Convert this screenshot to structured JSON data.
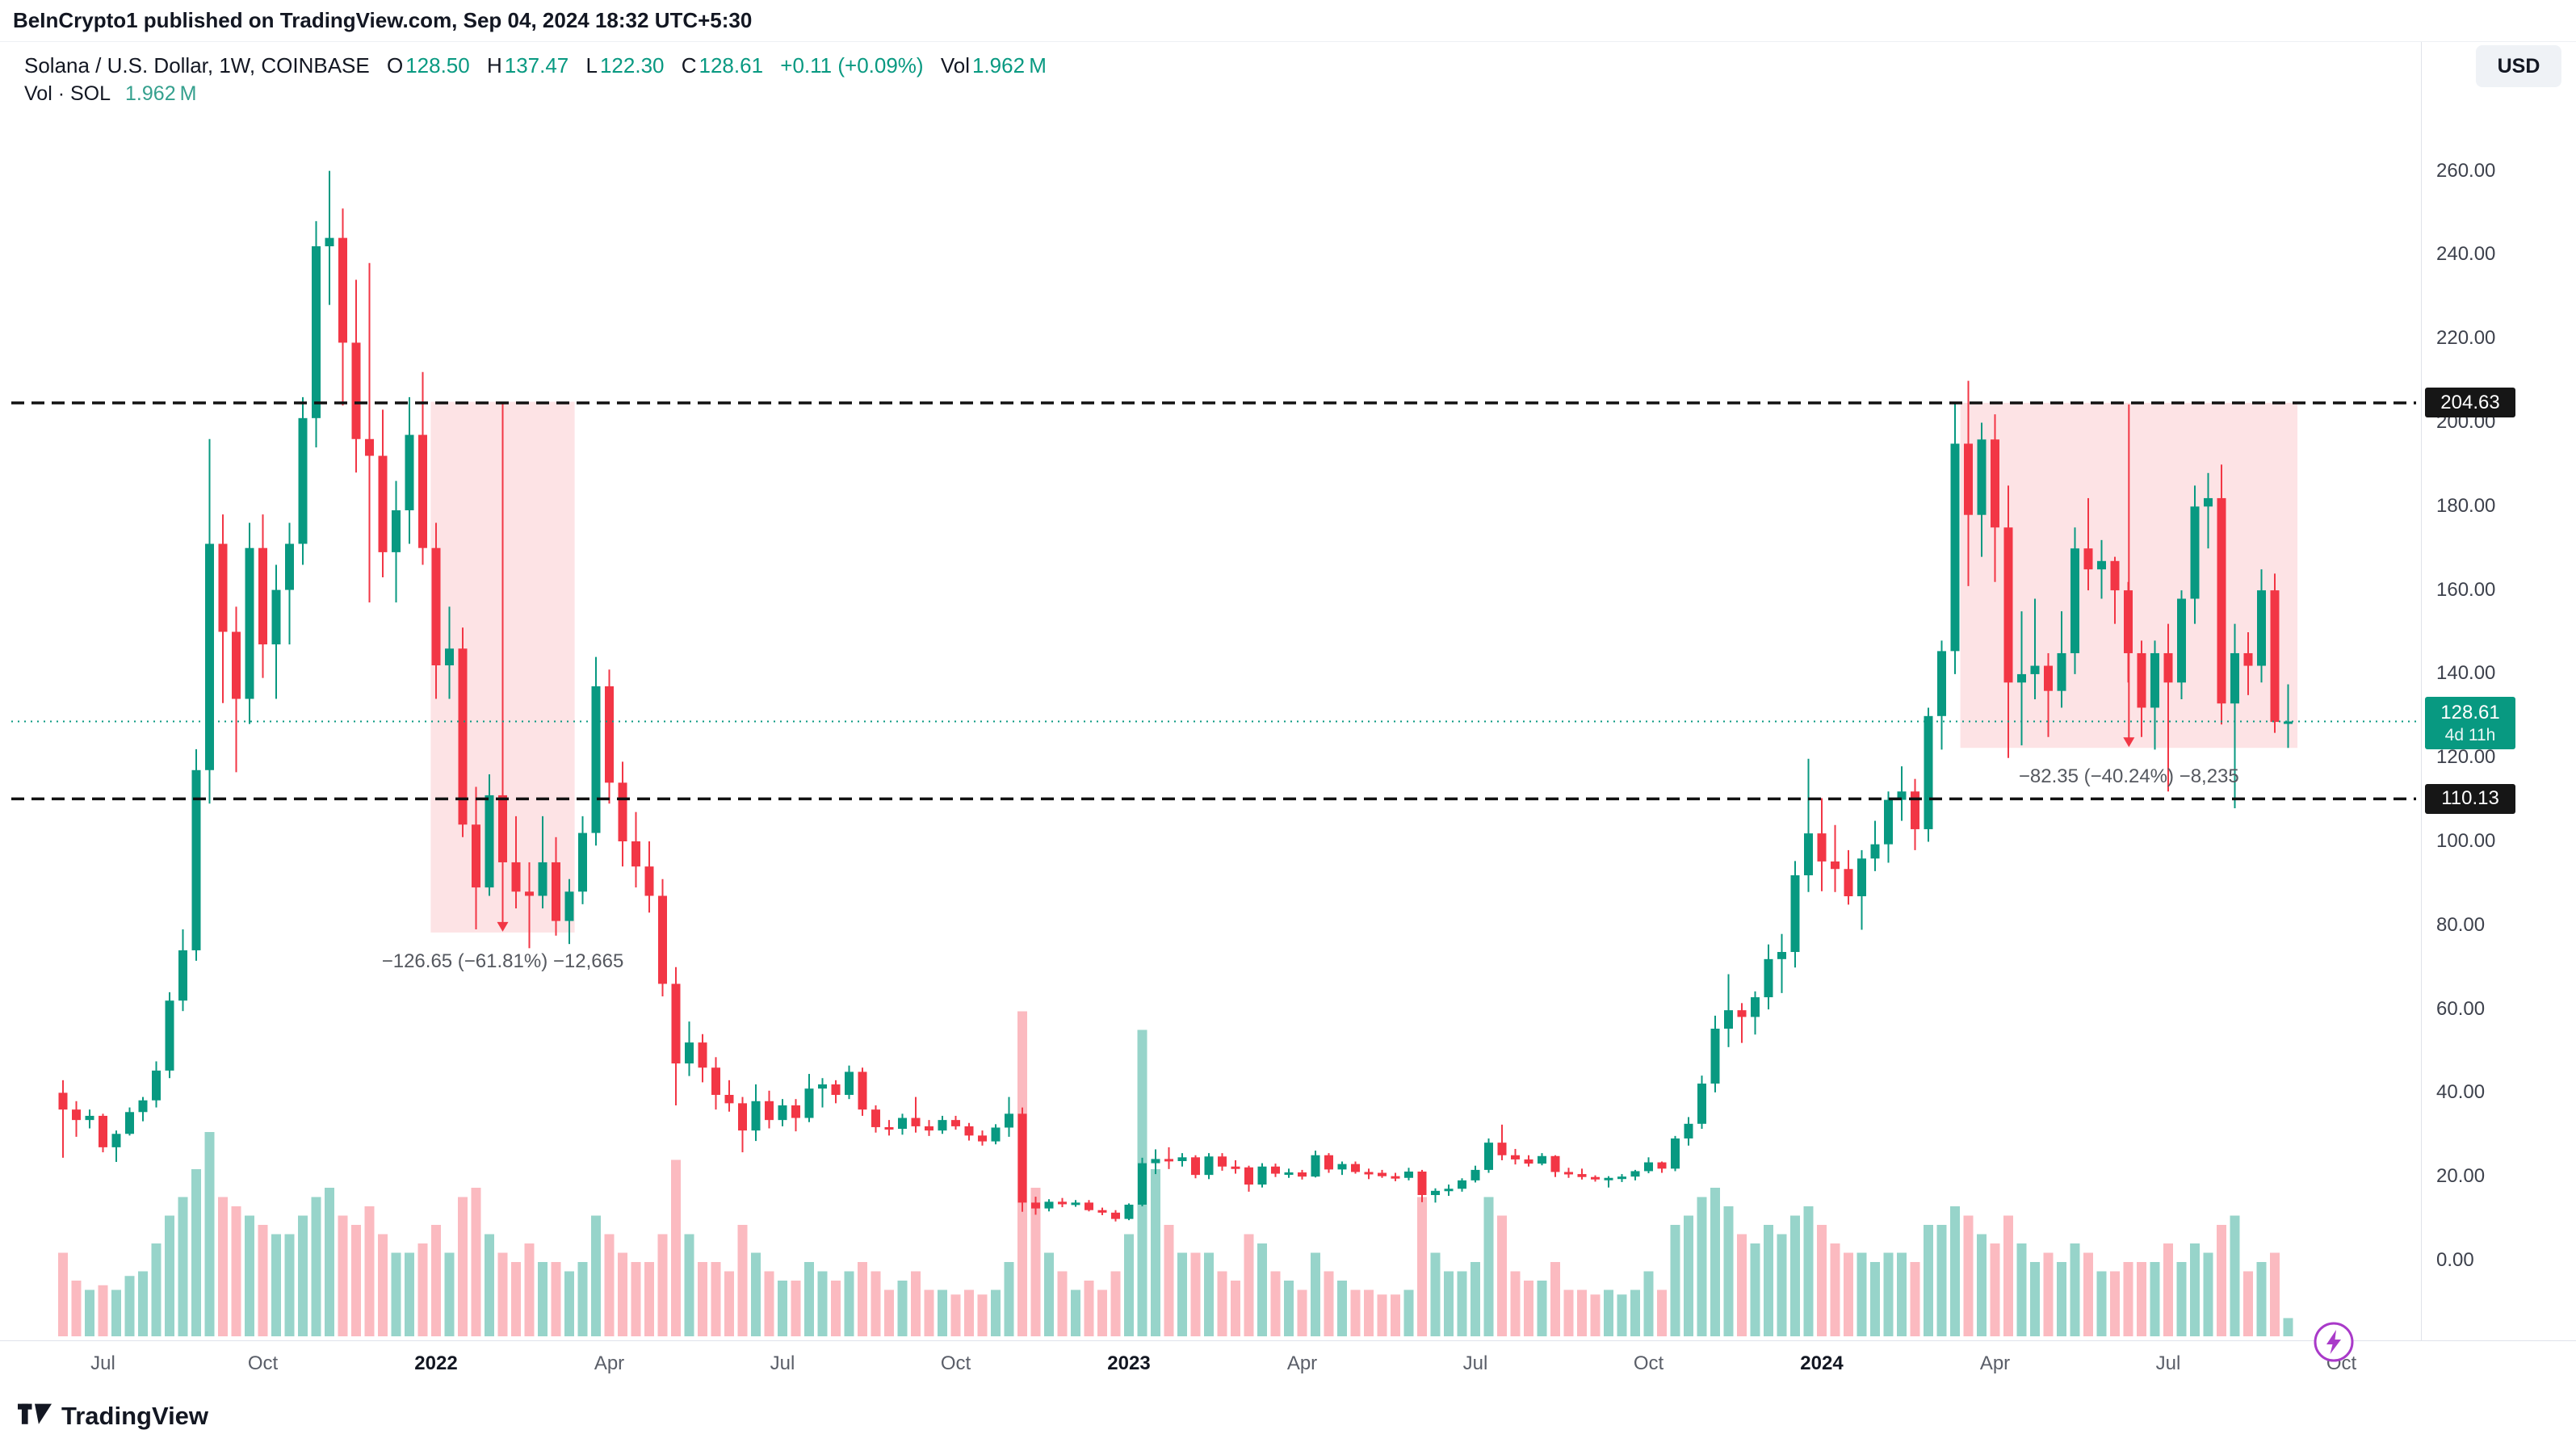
{
  "page": {
    "published_line": "BeInCrypto1 published on TradingView.com, Sep 04, 2024 18:32 UTC+5:30",
    "footer_brand": "TradingView"
  },
  "legend": {
    "symbol": "Solana / U.S. Dollar, 1W, COINBASE",
    "o_label": "O",
    "o": "128.50",
    "h_label": "H",
    "h": "137.47",
    "l_label": "L",
    "l": "122.30",
    "c_label": "C",
    "c": "128.61",
    "change": "+0.11 (+0.09%)",
    "vol_label": "Vol",
    "vol": "1.962 M",
    "row2_label": "Vol · SOL",
    "row2_value": "1.962 M"
  },
  "currency_button": "USD",
  "colors": {
    "up": "#089981",
    "down": "#f23645",
    "vol_up": "rgba(8,153,129,0.42)",
    "vol_down": "rgba(242,54,69,0.34)",
    "measure_fill": "rgba(242,54,69,0.14)",
    "level_line": "#111111",
    "last_line": "#089981"
  },
  "levels": {
    "resistance": 204.63,
    "support": 110.13,
    "last": 128.61
  },
  "badges": {
    "resistance": {
      "value": 204.63,
      "label": "204.63"
    },
    "support": {
      "value": 110.13,
      "label": "110.13"
    },
    "last": {
      "value": 128.61,
      "label": "128.61",
      "countdown": "4d 11h"
    }
  },
  "price_axis": {
    "ticks": [
      "260.00",
      "240.00",
      "220.00",
      "200.00",
      "180.00",
      "160.00",
      "140.00",
      "120.00",
      "100.00",
      "80.00",
      "60.00",
      "40.00",
      "20.00",
      "0.00"
    ]
  },
  "time_axis": {
    "labels": [
      {
        "text": "Jul",
        "week": 3,
        "year": false
      },
      {
        "text": "Oct",
        "week": 15,
        "year": false
      },
      {
        "text": "2022",
        "week": 28,
        "year": true
      },
      {
        "text": "Apr",
        "week": 41,
        "year": false
      },
      {
        "text": "Jul",
        "week": 54,
        "year": false
      },
      {
        "text": "Oct",
        "week": 67,
        "year": false
      },
      {
        "text": "2023",
        "week": 80,
        "year": true
      },
      {
        "text": "Apr",
        "week": 93,
        "year": false
      },
      {
        "text": "Jul",
        "week": 106,
        "year": false
      },
      {
        "text": "Oct",
        "week": 119,
        "year": false
      },
      {
        "text": "2024",
        "week": 132,
        "year": true
      },
      {
        "text": "Apr",
        "week": 145,
        "year": false
      },
      {
        "text": "Jul",
        "week": 158,
        "year": false
      },
      {
        "text": "Oct",
        "week": 171,
        "year": false
      }
    ]
  },
  "annotations": {
    "measure1": {
      "from_week": 27.6,
      "to_week": 38.4,
      "price_top": 204.9,
      "price_bottom": 78.25,
      "label": "−126.65 (−61.81%) −12,665"
    },
    "measure2": {
      "from_week": 142.4,
      "to_week": 167.7,
      "price_top": 204.65,
      "price_bottom": 122.3,
      "label": "−82.35 (−40.24%) −8,235"
    }
  },
  "chart_data": {
    "type": "candlestick",
    "title": "Solana / U.S. Dollar",
    "symbol": "SOL/USD",
    "exchange": "COINBASE",
    "timeframe": "1W",
    "start_week": "2021-06-21",
    "end_week": "2024-09-02",
    "price_range": [
      0,
      260
    ],
    "grid": false,
    "current": {
      "open": 128.5,
      "high": 137.47,
      "low": 122.3,
      "close": 128.61,
      "change": 0.11,
      "change_pct": 0.09,
      "volume_m": 1.962
    },
    "support_resistance": [
      204.63,
      110.13
    ],
    "candles_format": [
      "open",
      "high",
      "low",
      "close",
      "volume_m"
    ],
    "candles": [
      [
        40,
        43,
        24.5,
        36,
        9
      ],
      [
        36,
        38,
        29.5,
        33.5,
        6
      ],
      [
        33.5,
        36,
        31.5,
        34.5,
        5
      ],
      [
        34.5,
        35,
        25.8,
        27,
        5.5
      ],
      [
        27,
        31,
        23.5,
        30.2,
        5
      ],
      [
        30.2,
        36.5,
        29.8,
        35.4,
        6.5
      ],
      [
        35.4,
        39,
        33.2,
        38.2,
        7
      ],
      [
        38.2,
        47.5,
        36.5,
        45.3,
        10
      ],
      [
        45.3,
        64,
        43.5,
        62,
        13
      ],
      [
        62,
        79,
        59.5,
        74,
        15
      ],
      [
        74,
        122,
        71.5,
        117,
        18
      ],
      [
        117,
        196,
        109,
        171,
        22
      ],
      [
        171,
        178,
        133,
        150,
        15
      ],
      [
        150,
        156,
        116.5,
        134,
        14
      ],
      [
        134,
        176,
        128,
        170,
        13
      ],
      [
        170,
        178,
        139,
        147,
        12
      ],
      [
        147,
        166,
        134,
        160,
        11
      ],
      [
        160,
        176,
        147,
        171,
        11
      ],
      [
        171,
        206,
        166,
        201,
        13
      ],
      [
        201,
        248,
        194,
        242,
        15
      ],
      [
        242,
        260,
        228,
        244,
        16
      ],
      [
        244,
        251,
        204,
        219,
        13
      ],
      [
        219,
        234,
        188,
        196,
        12
      ],
      [
        196,
        238,
        157,
        192,
        14
      ],
      [
        192,
        203,
        163,
        169,
        11
      ],
      [
        169,
        186,
        157,
        179,
        9
      ],
      [
        179,
        206,
        171,
        197,
        9
      ],
      [
        197,
        212,
        166,
        170,
        10
      ],
      [
        170,
        176,
        134,
        142,
        12
      ],
      [
        142,
        156,
        134,
        146,
        9
      ],
      [
        146,
        151,
        101,
        104,
        15
      ],
      [
        104,
        113,
        79,
        89,
        16
      ],
      [
        89,
        116,
        87,
        111,
        11
      ],
      [
        111,
        118,
        91,
        95,
        9
      ],
      [
        95,
        106,
        84,
        88,
        8
      ],
      [
        88,
        95,
        74.5,
        87,
        10
      ],
      [
        87,
        106,
        84,
        95,
        8
      ],
      [
        95,
        101,
        77.5,
        81,
        8
      ],
      [
        81,
        91,
        75.5,
        88,
        7
      ],
      [
        88,
        106,
        85,
        102,
        8
      ],
      [
        102,
        144,
        99,
        137,
        13
      ],
      [
        137,
        141,
        109,
        114,
        11
      ],
      [
        114,
        119,
        94,
        100,
        9
      ],
      [
        100,
        107,
        89,
        94,
        8
      ],
      [
        94,
        100,
        83,
        87,
        8
      ],
      [
        87,
        91,
        63,
        66,
        11
      ],
      [
        66,
        70,
        37,
        47,
        19
      ],
      [
        47,
        57,
        44,
        52,
        11
      ],
      [
        52,
        54,
        42.5,
        46,
        8
      ],
      [
        46,
        48.5,
        36,
        39.5,
        8
      ],
      [
        39.5,
        43,
        35.5,
        37.5,
        7
      ],
      [
        37.5,
        39,
        25.8,
        31,
        12
      ],
      [
        31,
        42,
        28.5,
        38,
        9
      ],
      [
        38,
        40.5,
        31.5,
        33.5,
        7
      ],
      [
        33.5,
        38.5,
        32,
        37,
        6
      ],
      [
        37,
        38.5,
        30.8,
        34,
        6
      ],
      [
        34,
        44.5,
        33,
        41,
        8
      ],
      [
        41,
        43.5,
        36.5,
        42,
        7
      ],
      [
        42,
        43,
        37.5,
        39.5,
        6
      ],
      [
        39.5,
        46.5,
        38.5,
        45,
        7
      ],
      [
        45,
        46,
        34.5,
        36,
        8
      ],
      [
        36,
        37,
        30.5,
        31.8,
        7
      ],
      [
        31.8,
        33.5,
        29.8,
        31.4,
        5
      ],
      [
        31.4,
        35,
        30,
        34,
        6
      ],
      [
        34,
        39,
        30.5,
        32,
        7
      ],
      [
        32,
        33.5,
        29.7,
        31,
        5
      ],
      [
        31,
        34.5,
        30.2,
        33.5,
        5
      ],
      [
        33.5,
        34.5,
        31.2,
        32,
        4.5
      ],
      [
        32,
        32.8,
        28.6,
        29.8,
        5
      ],
      [
        29.8,
        31,
        27.4,
        28.4,
        4.5
      ],
      [
        28.4,
        32.5,
        27.7,
        31.7,
        5
      ],
      [
        31.7,
        39,
        29.5,
        35,
        8
      ],
      [
        35,
        36.5,
        11.6,
        13.8,
        35
      ],
      [
        13.8,
        15.2,
        10.9,
        12.4,
        16
      ],
      [
        12.4,
        14.6,
        11.7,
        14,
        9
      ],
      [
        14,
        14.9,
        12.7,
        13.4,
        7
      ],
      [
        13.4,
        14.4,
        12.8,
        13.8,
        5
      ],
      [
        13.8,
        14.4,
        11.7,
        12,
        6
      ],
      [
        12,
        12.6,
        10.8,
        11.4,
        5
      ],
      [
        11.4,
        12,
        9.3,
        9.9,
        7
      ],
      [
        9.9,
        13.6,
        9.6,
        13.3,
        11
      ],
      [
        13.3,
        24.5,
        12.9,
        23.2,
        33
      ],
      [
        23.2,
        26.5,
        20.6,
        24.2,
        18
      ],
      [
        24.2,
        27,
        21.8,
        23.7,
        12
      ],
      [
        23.7,
        25.6,
        22.4,
        24.6,
        9
      ],
      [
        24.6,
        25.1,
        19.6,
        20.4,
        9
      ],
      [
        20.4,
        25.6,
        19.4,
        24.8,
        9
      ],
      [
        24.8,
        25.6,
        21.4,
        22.4,
        7
      ],
      [
        22.4,
        23.9,
        20.7,
        22.2,
        6
      ],
      [
        22.2,
        22.6,
        16.4,
        18.1,
        11
      ],
      [
        18.1,
        23.2,
        17.4,
        22.4,
        10
      ],
      [
        22.4,
        23.1,
        19.9,
        20.7,
        7
      ],
      [
        20.7,
        21.9,
        19.7,
        21,
        6
      ],
      [
        21,
        21.6,
        19.3,
        20,
        5
      ],
      [
        20,
        26.2,
        19.8,
        25.1,
        9
      ],
      [
        25.1,
        25.6,
        20.9,
        21.7,
        7
      ],
      [
        21.7,
        23.6,
        20.4,
        23,
        6
      ],
      [
        23,
        23.6,
        20.7,
        21.1,
        5
      ],
      [
        21.1,
        21.9,
        19.4,
        20.9,
        5
      ],
      [
        20.9,
        21.6,
        19.7,
        20.1,
        4.5
      ],
      [
        20.1,
        20.9,
        18.9,
        19.7,
        4.5
      ],
      [
        19.7,
        22.1,
        19.1,
        21.2,
        5
      ],
      [
        21.2,
        21.6,
        13.9,
        15.6,
        15
      ],
      [
        15.6,
        17.2,
        13.8,
        16.6,
        9
      ],
      [
        16.6,
        18.1,
        15.4,
        17.1,
        7
      ],
      [
        17.1,
        19.6,
        16.4,
        19.1,
        7
      ],
      [
        19.1,
        22.6,
        18.6,
        21.6,
        8
      ],
      [
        21.6,
        29.1,
        20.9,
        28.1,
        15
      ],
      [
        28.1,
        32.4,
        23.9,
        25.1,
        13
      ],
      [
        25.1,
        26.6,
        22.9,
        24.1,
        7
      ],
      [
        24.1,
        25.1,
        22.4,
        23.1,
        6
      ],
      [
        23.1,
        25.6,
        22.7,
        24.9,
        6
      ],
      [
        24.9,
        25.1,
        19.9,
        21.1,
        8
      ],
      [
        21.1,
        22.1,
        19.7,
        20.6,
        5
      ],
      [
        20.6,
        21.9,
        19.3,
        19.9,
        5
      ],
      [
        19.9,
        20.3,
        18.8,
        19.4,
        4.5
      ],
      [
        19.4,
        20.1,
        17.4,
        19.7,
        5
      ],
      [
        19.7,
        20.6,
        18.7,
        20,
        4.5
      ],
      [
        20,
        21.6,
        19.1,
        21.3,
        5
      ],
      [
        21.3,
        24.6,
        20.8,
        23.4,
        7
      ],
      [
        23.4,
        23.6,
        20.9,
        21.9,
        5
      ],
      [
        21.9,
        29.7,
        21.3,
        29.1,
        12
      ],
      [
        29.1,
        34.2,
        27.4,
        32.6,
        13
      ],
      [
        32.6,
        44.1,
        31.4,
        42.2,
        15
      ],
      [
        42.2,
        58.4,
        40.1,
        55.3,
        16
      ],
      [
        55.3,
        68.3,
        50.9,
        59.7,
        14
      ],
      [
        59.7,
        61.4,
        51.9,
        58.1,
        11
      ],
      [
        58.1,
        64.2,
        53.9,
        62.8,
        10
      ],
      [
        62.8,
        75.4,
        59.9,
        71.9,
        12
      ],
      [
        71.9,
        77.9,
        63.8,
        73.6,
        11
      ],
      [
        73.6,
        95.3,
        69.9,
        91.9,
        13
      ],
      [
        91.9,
        119.7,
        87.9,
        101.9,
        14
      ],
      [
        101.9,
        110.3,
        88.1,
        95.2,
        12
      ],
      [
        95.2,
        103.9,
        87.9,
        93.4,
        10
      ],
      [
        93.4,
        97.9,
        84.9,
        86.9,
        9
      ],
      [
        86.9,
        97.9,
        78.9,
        95.9,
        9
      ],
      [
        95.9,
        104.9,
        92.9,
        99.3,
        8
      ],
      [
        99.3,
        111.9,
        94.9,
        109.9,
        9
      ],
      [
        109.9,
        117.9,
        104.9,
        111.9,
        9
      ],
      [
        111.9,
        114.9,
        97.9,
        102.9,
        8
      ],
      [
        102.9,
        131.9,
        99.9,
        129.9,
        12
      ],
      [
        129.9,
        147.9,
        121.9,
        145.4,
        12
      ],
      [
        145.4,
        204.9,
        139.9,
        194.9,
        14
      ],
      [
        194.9,
        209.9,
        160.9,
        177.9,
        13
      ],
      [
        177.9,
        199.9,
        167.9,
        195.9,
        11
      ],
      [
        195.9,
        201.9,
        161.9,
        174.9,
        10
      ],
      [
        174.9,
        184.9,
        119.9,
        137.9,
        13
      ],
      [
        137.9,
        154.9,
        122.9,
        139.9,
        10
      ],
      [
        139.9,
        157.9,
        133.9,
        141.9,
        8
      ],
      [
        141.9,
        144.9,
        124.9,
        135.9,
        9
      ],
      [
        135.9,
        154.9,
        131.9,
        144.9,
        8
      ],
      [
        144.9,
        174.9,
        139.9,
        169.9,
        10
      ],
      [
        169.9,
        181.9,
        159.9,
        164.9,
        9
      ],
      [
        164.9,
        171.9,
        157.9,
        166.9,
        7
      ],
      [
        166.9,
        167.9,
        151.9,
        159.9,
        7
      ],
      [
        159.9,
        161.9,
        137.9,
        144.9,
        8
      ],
      [
        144.9,
        147.9,
        124.9,
        131.9,
        8
      ],
      [
        131.9,
        147.9,
        121.9,
        144.9,
        8
      ],
      [
        144.9,
        151.9,
        111.9,
        137.9,
        10
      ],
      [
        137.9,
        159.9,
        133.9,
        157.9,
        8
      ],
      [
        157.9,
        184.9,
        151.9,
        179.9,
        10
      ],
      [
        179.9,
        187.9,
        169.9,
        181.9,
        9
      ],
      [
        181.9,
        189.9,
        127.9,
        132.9,
        12
      ],
      [
        132.9,
        151.9,
        107.9,
        144.9,
        13
      ],
      [
        144.9,
        149.9,
        134.9,
        141.9,
        7
      ],
      [
        141.9,
        164.9,
        137.9,
        159.9,
        8
      ],
      [
        159.9,
        163.9,
        125.9,
        128.5,
        9
      ],
      [
        128.5,
        137.47,
        122.3,
        128.61,
        1.962
      ]
    ]
  }
}
